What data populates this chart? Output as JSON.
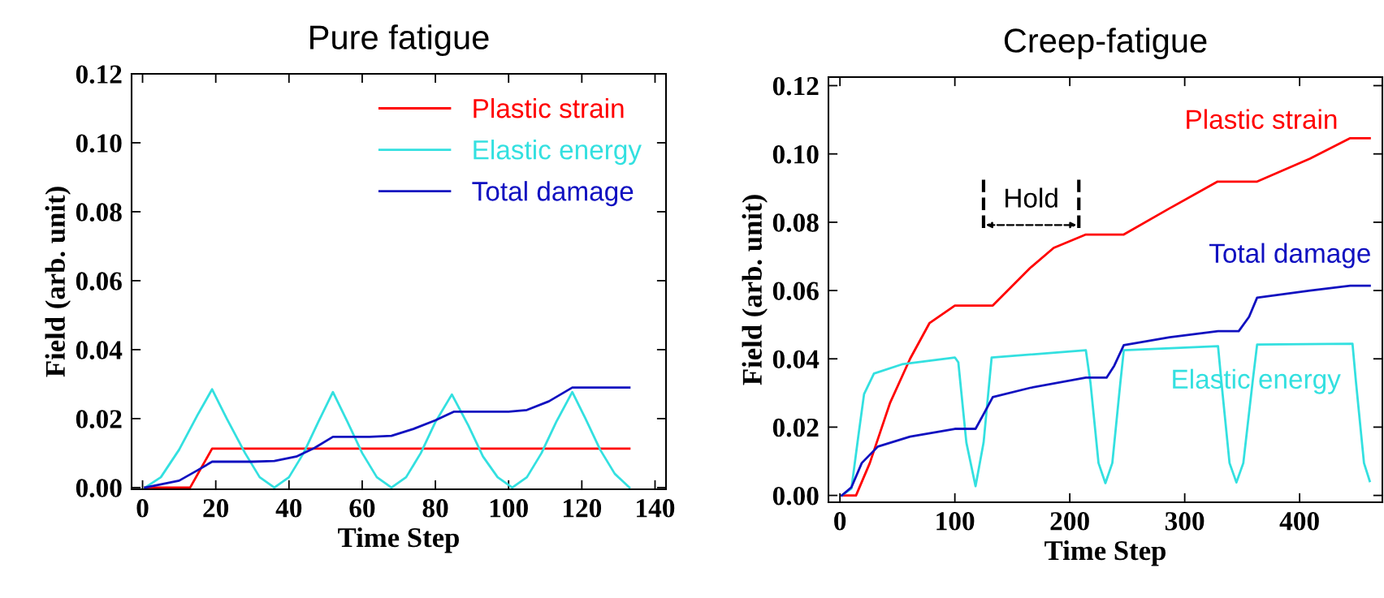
{
  "chart_data": [
    {
      "type": "line",
      "title": "Pure fatigue",
      "xlabel": "Time Step",
      "ylabel": "Field (arb. unit)",
      "xlim": [
        -3,
        143
      ],
      "ylim": [
        -0.0005,
        0.12
      ],
      "xticks": [
        0,
        20,
        40,
        60,
        80,
        100,
        120,
        140
      ],
      "yticks": [
        {
          "value": 0,
          "label": "0.00"
        },
        {
          "value": 0.02,
          "label": "0.02"
        },
        {
          "value": 0.04,
          "label": "0.04"
        },
        {
          "value": 0.06,
          "label": "0.06"
        },
        {
          "value": 0.08,
          "label": "0.08"
        },
        {
          "value": 0.1,
          "label": "0.10"
        },
        {
          "value": 0.12,
          "label": "0.12"
        }
      ],
      "grid": false,
      "legend": "top right",
      "series": [
        {
          "name": "Plastic strain",
          "color": "#ff0000",
          "x": [
            0.7,
            13,
            19,
            133
          ],
          "values": [
            0,
            0,
            0.0113,
            0.0113
          ]
        },
        {
          "name": "Elastic energy",
          "color": "#33e0e0",
          "x": [
            0.7,
            5,
            10,
            15,
            19,
            23,
            28,
            32,
            36,
            40,
            44,
            48,
            52,
            56,
            60,
            64,
            68,
            72,
            76,
            80,
            84.5,
            89,
            93,
            97,
            101,
            105,
            109,
            113,
            117.4,
            121,
            125,
            129,
            133
          ],
          "values": [
            0,
            0.003,
            0.011,
            0.021,
            0.0285,
            0.02,
            0.01,
            0.003,
            0,
            0.003,
            0.01,
            0.019,
            0.0277,
            0.019,
            0.01,
            0.003,
            0,
            0.003,
            0.01,
            0.019,
            0.027,
            0.018,
            0.009,
            0.003,
            0,
            0.003,
            0.01,
            0.019,
            0.0277,
            0.02,
            0.011,
            0.004,
            0
          ]
        },
        {
          "name": "Total damage",
          "color": "#1010c0",
          "x": [
            0.7,
            10,
            15,
            19,
            30,
            36,
            42,
            47,
            52,
            62,
            68,
            74,
            80,
            85,
            100,
            105,
            111,
            117.4,
            133
          ],
          "values": [
            0,
            0.002,
            0.005,
            0.0075,
            0.0075,
            0.0077,
            0.009,
            0.0115,
            0.0147,
            0.0147,
            0.015,
            0.017,
            0.0195,
            0.022,
            0.022,
            0.0225,
            0.025,
            0.029,
            0.029
          ]
        }
      ]
    },
    {
      "type": "line",
      "title": "Creep-fatigue",
      "xlabel": "Time Step",
      "ylabel": "Field (arb. unit)",
      "xlim": [
        -10,
        472
      ],
      "ylim": [
        -0.002,
        0.1225
      ],
      "xticks": [
        0,
        100,
        200,
        300,
        400
      ],
      "yticks": [
        {
          "value": 0,
          "label": "0.00"
        },
        {
          "value": 0.02,
          "label": "0.02"
        },
        {
          "value": 0.04,
          "label": "0.04"
        },
        {
          "value": 0.06,
          "label": "0.06"
        },
        {
          "value": 0.08,
          "label": "0.08"
        },
        {
          "value": 0.1,
          "label": "0.10"
        },
        {
          "value": 0.12,
          "label": "0.12"
        }
      ],
      "grid": false,
      "legend": false,
      "annotations": [
        "Hold"
      ],
      "series": [
        {
          "name": "Plastic strain",
          "color": "#ff0000",
          "x": [
            1.7,
            14,
            26,
            43.5,
            61,
            78,
            100,
            133,
            165.5,
            186,
            214,
            247,
            287,
            328.6,
            363,
            409,
            444,
            461
          ],
          "values": [
            0,
            0,
            0.0095,
            0.027,
            0.04,
            0.0505,
            0.0556,
            0.0556,
            0.0666,
            0.0725,
            0.0764,
            0.0764,
            0.0841,
            0.0919,
            0.0919,
            0.0986,
            0.1046,
            0.1046
          ]
        },
        {
          "name": "Elastic energy",
          "color": "#33e0e0",
          "x": [
            1.7,
            10,
            15.7,
            21,
            29.6,
            54,
            100,
            103,
            110,
            118,
            125,
            132,
            214,
            218,
            225,
            231,
            237,
            244,
            247,
            329,
            332,
            339,
            345,
            351,
            359,
            363,
            446,
            449,
            456,
            461
          ],
          "values": [
            0,
            0.002,
            0.0166,
            0.0297,
            0.0357,
            0.0384,
            0.0404,
            0.039,
            0.0155,
            0.0027,
            0.0155,
            0.0404,
            0.0425,
            0.033,
            0.0095,
            0.0036,
            0.0095,
            0.033,
            0.0425,
            0.0437,
            0.033,
            0.0095,
            0.0038,
            0.0095,
            0.033,
            0.0442,
            0.0444,
            0.0333,
            0.0095,
            0.0042
          ]
        },
        {
          "name": "Total damage",
          "color": "#1010c0",
          "x": [
            1.7,
            10,
            19,
            33,
            61,
            100,
            118,
            125,
            133,
            165.5,
            214,
            232,
            238.7,
            247,
            287,
            329,
            347,
            356,
            363,
            409,
            444,
            461
          ],
          "values": [
            0,
            0.0024,
            0.0095,
            0.0143,
            0.0172,
            0.0195,
            0.0195,
            0.0238,
            0.0288,
            0.0315,
            0.0345,
            0.0345,
            0.038,
            0.044,
            0.0463,
            0.0481,
            0.0481,
            0.0523,
            0.0579,
            0.06,
            0.0614,
            0.0614
          ]
        }
      ]
    }
  ]
}
